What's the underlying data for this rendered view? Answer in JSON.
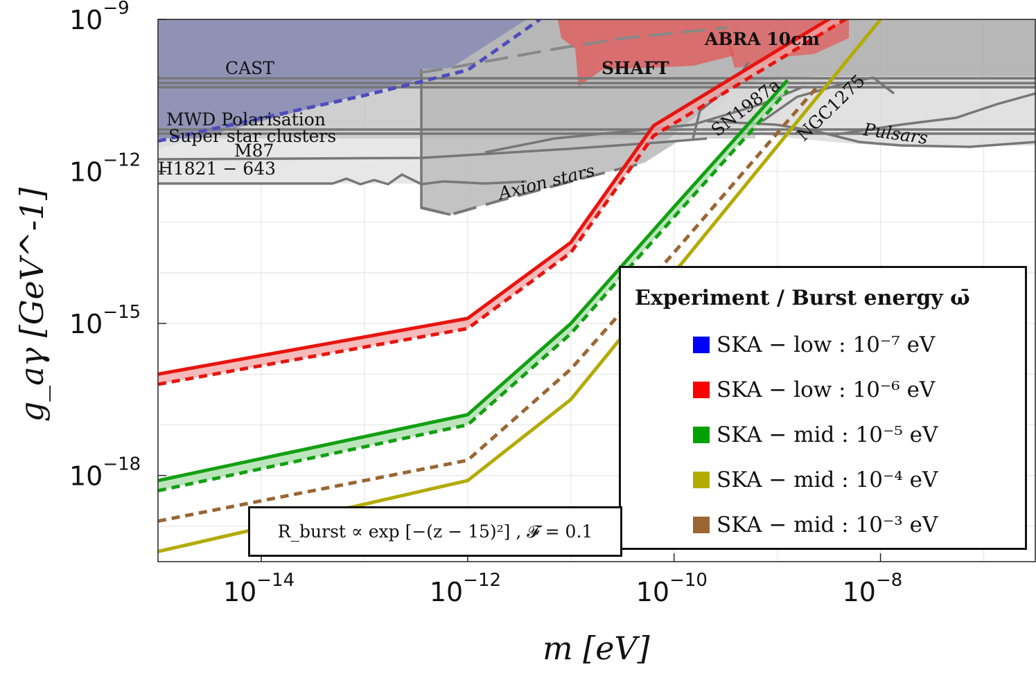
{
  "chart_data": {
    "type": "line",
    "title": "",
    "xlabel": "m [eV]",
    "ylabel": "g_aγ [GeV^-1]",
    "x_scale": "log",
    "y_scale": "log",
    "xlim_log10": [
      -15,
      -6.5
    ],
    "ylim_log10": [
      -19.7,
      -9
    ],
    "x_ticks": [
      {
        "log": -14,
        "label": "10",
        "exp": "−14"
      },
      {
        "log": -12,
        "label": "10",
        "exp": "−12"
      },
      {
        "log": -10,
        "label": "10",
        "exp": "−10"
      },
      {
        "log": -8,
        "label": "10",
        "exp": "−8"
      }
    ],
    "y_ticks": [
      {
        "log": -9,
        "label": "10",
        "exp": "−9"
      },
      {
        "log": -12,
        "label": "10",
        "exp": "−12"
      },
      {
        "log": -15,
        "label": "10",
        "exp": "−15"
      },
      {
        "log": -18,
        "label": "10",
        "exp": "−18"
      }
    ],
    "series": [
      {
        "name": "SKA − low : 10⁻⁷ eV",
        "color": "#4d4dbd",
        "style": "dashed",
        "x": [
          -15,
          -13,
          -12,
          -11.3
        ],
        "y": [
          -11.4,
          -10.5,
          -10.0,
          -9.0
        ]
      },
      {
        "name": "SKA − low : 10⁻⁶ eV",
        "color": "#e8140f",
        "style": "solid",
        "x": [
          -15,
          -12,
          -11,
          -10.2,
          -8.1
        ],
        "y": [
          -16.0,
          -14.9,
          -13.4,
          -11.1,
          -8.5
        ]
      },
      {
        "name": "SKA − low : 10⁻⁶ eV (dashed)",
        "color": "#e8140f",
        "style": "dashed",
        "x": [
          -15,
          -12,
          -11,
          -10.2,
          -8.1
        ],
        "y": [
          -16.2,
          -15.1,
          -13.6,
          -11.3,
          -8.7
        ]
      },
      {
        "name": "SKA − mid : 10⁻⁵ eV",
        "color": "#12a012",
        "style": "solid",
        "x": [
          -15,
          -12,
          -11,
          -10,
          -8.9
        ],
        "y": [
          -18.1,
          -16.8,
          -15.0,
          -12.7,
          -10.2
        ]
      },
      {
        "name": "SKA − mid : 10⁻⁵ eV (dashed)",
        "color": "#12a012",
        "style": "dashed",
        "x": [
          -15,
          -12,
          -11,
          -10,
          -8.9
        ],
        "y": [
          -18.3,
          -17.0,
          -15.2,
          -12.9,
          -10.4
        ]
      },
      {
        "name": "SKA − mid : 10⁻³ eV",
        "color": "#9a6634",
        "style": "dashed",
        "x": [
          -15,
          -12,
          -11,
          -10,
          -8.6
        ],
        "y": [
          -18.9,
          -17.7,
          -15.9,
          -13.6,
          -10.3
        ]
      },
      {
        "name": "SKA − mid : 10⁻⁴ eV",
        "color": "#b3ab05",
        "style": "solid",
        "x": [
          -15,
          -12,
          -11,
          -10,
          -8
        ],
        "y": [
          -19.5,
          -18.1,
          -16.5,
          -14.0,
          -9.0
        ]
      }
    ],
    "regions": [
      "CAST",
      "SHAFT",
      "ABRA 10cm",
      "MWD Polarisation",
      "Super star clusters",
      "M87",
      "H1821 − 643",
      "Axion stars",
      "SN1987a",
      "NGC1275",
      "Pulsars"
    ],
    "legend": {
      "title": "Experiment / Burst energy ω̄",
      "placement": "bottom-right",
      "items": [
        {
          "label": "SKA − low : 10⁻⁷ eV",
          "color": "#0000ff"
        },
        {
          "label": "SKA − low : 10⁻⁶ eV",
          "color": "#ff0000"
        },
        {
          "label": "SKA − mid : 10⁻⁵ eV",
          "color": "#00a000"
        },
        {
          "label": "SKA − mid : 10⁻⁴ eV",
          "color": "#b3ab00"
        },
        {
          "label": "SKA − mid : 10⁻³ eV",
          "color": "#9a6634"
        }
      ]
    },
    "annotation": "R_burst ∝ exp [−(z − 15)²] , 𝓕 = 0.1"
  }
}
